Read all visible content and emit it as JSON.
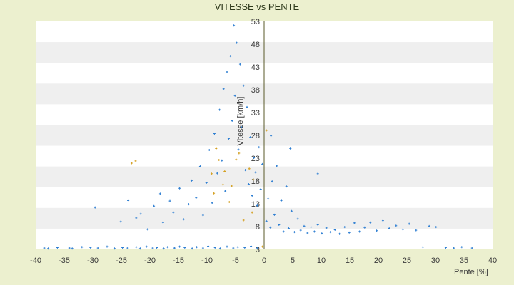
{
  "chart_data": {
    "type": "scatter",
    "title": "VITESSE vs PENTE",
    "xlabel": "Pente [%]",
    "ylabel": "Vitesse [km/h]",
    "xlim": [
      -40,
      40
    ],
    "ylim": [
      3,
      53
    ],
    "x_ticks": [
      "-40",
      "-35",
      "-30",
      "-25",
      "-20",
      "-15",
      "-10",
      "-5",
      "0",
      "5",
      "10",
      "15",
      "20",
      "25",
      "30",
      "35",
      "40"
    ],
    "y_ticks": [
      "3",
      "8",
      "13",
      "18",
      "23",
      "28",
      "33",
      "38",
      "43",
      "48",
      "53"
    ],
    "grid": "horizontal bands",
    "marker_color": "#2f7fd2",
    "highlight_color": "#d4a021",
    "band_color": "#efefef",
    "series": [
      {
        "points": [
          [
            -38.5,
            3.3
          ],
          [
            -37.8,
            3.2
          ],
          [
            -36.2,
            3.4
          ],
          [
            -34.1,
            3.3
          ],
          [
            -33.6,
            3.2
          ],
          [
            -31.9,
            3.5
          ],
          [
            -30.4,
            3.4
          ],
          [
            -29.1,
            3.3
          ],
          [
            -27.5,
            3.6
          ],
          [
            -26.2,
            3.2
          ],
          [
            -24.8,
            3.4
          ],
          [
            -23.9,
            3.3
          ],
          [
            -22.4,
            3.5
          ],
          [
            -21.7,
            3.2
          ],
          [
            -20.6,
            3.6
          ],
          [
            -19.5,
            3.3
          ],
          [
            -18.8,
            3.4
          ],
          [
            -17.6,
            3.2
          ],
          [
            -16.9,
            3.5
          ],
          [
            -15.7,
            3.3
          ],
          [
            -14.8,
            3.6
          ],
          [
            -13.9,
            3.4
          ],
          [
            -12.6,
            3.2
          ],
          [
            -11.8,
            3.5
          ],
          [
            -10.7,
            3.3
          ],
          [
            -9.8,
            3.7
          ],
          [
            -8.6,
            3.4
          ],
          [
            -7.7,
            3.2
          ],
          [
            -6.5,
            3.6
          ],
          [
            -5.4,
            3.3
          ],
          [
            -4.6,
            3.5
          ],
          [
            -3.4,
            3.4
          ],
          [
            -2.3,
            3.7
          ],
          [
            -1.2,
            3.3
          ],
          [
            -29.6,
            12.2
          ],
          [
            -25.1,
            9.1
          ],
          [
            -23.8,
            13.7
          ],
          [
            -22.4,
            9.9
          ],
          [
            -21.6,
            10.8
          ],
          [
            -20.4,
            7.4
          ],
          [
            -19.3,
            12.5
          ],
          [
            -18.2,
            15.2
          ],
          [
            -17.7,
            8.9
          ],
          [
            -16.5,
            13.6
          ],
          [
            -15.9,
            11.1
          ],
          [
            -14.8,
            16.4
          ],
          [
            -14.1,
            9.6
          ],
          [
            -13.2,
            12.9
          ],
          [
            -12.7,
            18.1
          ],
          [
            -11.9,
            14.3
          ],
          [
            -11.2,
            21.2
          ],
          [
            -10.7,
            10.5
          ],
          [
            -10.1,
            17.6
          ],
          [
            -9.6,
            24.8
          ],
          [
            -9.1,
            13.2
          ],
          [
            -8.7,
            28.4
          ],
          [
            -8.2,
            19.7
          ],
          [
            -7.8,
            33.6
          ],
          [
            -7.4,
            22.5
          ],
          [
            -7.1,
            38.2
          ],
          [
            -6.8,
            15.8
          ],
          [
            -6.5,
            41.9
          ],
          [
            -6.2,
            27.3
          ],
          [
            -5.9,
            45.4
          ],
          [
            -5.6,
            31.2
          ],
          [
            -5.3,
            52.1
          ],
          [
            -5.1,
            36.7
          ],
          [
            -4.8,
            48.3
          ],
          [
            -4.5,
            24.9
          ],
          [
            -4.2,
            43.6
          ],
          [
            -3.9,
            29.8
          ],
          [
            -3.6,
            38.9
          ],
          [
            -3.3,
            20.4
          ],
          [
            -3.0,
            34.2
          ],
          [
            -2.7,
            17.3
          ],
          [
            -2.4,
            27.6
          ],
          [
            -2.1,
            14.8
          ],
          [
            -1.8,
            23.1
          ],
          [
            -1.5,
            19.9
          ],
          [
            -1.2,
            12.6
          ],
          [
            -0.9,
            25.4
          ],
          [
            -0.6,
            16.2
          ],
          [
            -0.3,
            21.7
          ],
          [
            0.4,
            9.2
          ],
          [
            0.7,
            14.1
          ],
          [
            1.1,
            7.8
          ],
          [
            1.4,
            17.9
          ],
          [
            1.8,
            10.6
          ],
          [
            2.2,
            21.3
          ],
          [
            2.6,
            8.4
          ],
          [
            3.0,
            13.7
          ],
          [
            3.4,
            6.9
          ],
          [
            3.9,
            16.8
          ],
          [
            4.3,
            7.6
          ],
          [
            4.8,
            11.4
          ],
          [
            5.3,
            6.8
          ],
          [
            5.9,
            9.7
          ],
          [
            6.4,
            7.2
          ],
          [
            7.0,
            8.1
          ],
          [
            7.6,
            6.6
          ],
          [
            8.2,
            7.9
          ],
          [
            8.8,
            6.9
          ],
          [
            9.4,
            8.4
          ],
          [
            10.1,
            6.5
          ],
          [
            10.9,
            7.7
          ],
          [
            11.6,
            6.8
          ],
          [
            12.4,
            7.3
          ],
          [
            13.2,
            6.4
          ],
          [
            14.1,
            7.9
          ],
          [
            14.9,
            6.7
          ],
          [
            15.8,
            8.8
          ],
          [
            16.7,
            6.9
          ],
          [
            17.6,
            7.8
          ],
          [
            18.6,
            8.9
          ],
          [
            19.7,
            7.1
          ],
          [
            20.8,
            9.3
          ],
          [
            21.9,
            7.6
          ],
          [
            23.1,
            8.2
          ],
          [
            24.3,
            7.4
          ],
          [
            25.4,
            8.6
          ],
          [
            26.6,
            7.2
          ],
          [
            27.8,
            3.5
          ],
          [
            28.9,
            8.1
          ],
          [
            30.1,
            7.9
          ],
          [
            31.8,
            3.4
          ],
          [
            33.2,
            3.3
          ],
          [
            34.6,
            3.5
          ],
          [
            36.4,
            3.3
          ],
          [
            9.4,
            19.6
          ],
          [
            4.6,
            25.1
          ],
          [
            1.2,
            27.9
          ]
        ],
        "highlights": [
          [
            -22.5,
            22.4
          ],
          [
            -23.2,
            21.9
          ],
          [
            -8.4,
            25.1
          ],
          [
            -7.9,
            22.6
          ],
          [
            -6.9,
            20.1
          ],
          [
            -9.2,
            19.6
          ],
          [
            -7.2,
            17.2
          ],
          [
            -6.1,
            13.4
          ],
          [
            -5.7,
            16.9
          ],
          [
            -8.8,
            15.3
          ],
          [
            -4.4,
            24.1
          ],
          [
            -2.6,
            20.7
          ],
          [
            -4.9,
            22.7
          ],
          [
            -1.9,
            18.3
          ],
          [
            0.4,
            29.1
          ],
          [
            -0.3,
            3.6
          ],
          [
            -2.1,
            11.1
          ],
          [
            -3.6,
            9.4
          ]
        ]
      }
    ]
  }
}
